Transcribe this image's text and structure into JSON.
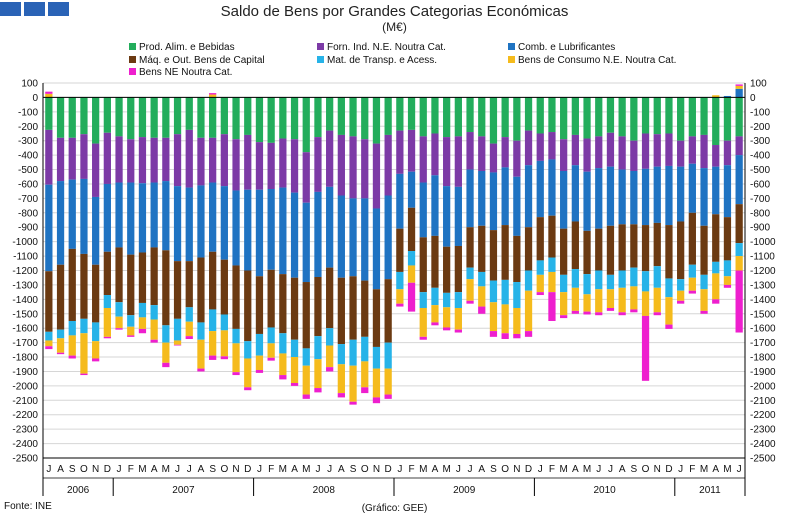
{
  "title": "Saldo de Bens por Grandes Categorias Económicas",
  "unit": "(M€)",
  "source": "Fonte: INE",
  "credit": "(Gráfico: GEE)",
  "chart_data": {
    "type": "bar",
    "stacked": true,
    "ylim": [
      -2500,
      100
    ],
    "ytick_step": 100,
    "grid": true,
    "legend_position": "top",
    "categories": [
      "J",
      "A",
      "S",
      "O",
      "N",
      "D",
      "J",
      "F",
      "M",
      "A",
      "M",
      "J",
      "J",
      "A",
      "S",
      "O",
      "N",
      "D",
      "J",
      "F",
      "M",
      "A",
      "M",
      "J",
      "J",
      "A",
      "S",
      "O",
      "N",
      "D",
      "J",
      "F",
      "M",
      "A",
      "M",
      "J",
      "J",
      "A",
      "S",
      "O",
      "N",
      "D",
      "J",
      "F",
      "M",
      "A",
      "M",
      "J",
      "J",
      "A",
      "S",
      "O",
      "N",
      "D",
      "J",
      "F",
      "M",
      "A",
      "M",
      "J"
    ],
    "years": [
      {
        "label": "2006",
        "start": 0,
        "count": 6
      },
      {
        "label": "2007",
        "start": 6,
        "count": 12
      },
      {
        "label": "2008",
        "start": 18,
        "count": 12
      },
      {
        "label": "2009",
        "start": 30,
        "count": 12
      },
      {
        "label": "2010",
        "start": 42,
        "count": 12
      },
      {
        "label": "2011",
        "start": 54,
        "count": 6
      }
    ],
    "series": [
      {
        "name": "Prod. Alim. e Bebidas",
        "color": "#23ad5c",
        "values": [
          -225,
          -280,
          -280,
          -255,
          -320,
          -245,
          -270,
          -290,
          -275,
          -280,
          -280,
          -255,
          -225,
          -280,
          -280,
          -255,
          -290,
          -260,
          -310,
          -315,
          -285,
          -290,
          -380,
          -275,
          -230,
          -260,
          -270,
          -290,
          -320,
          -260,
          -230,
          -225,
          -270,
          -250,
          -275,
          -270,
          -240,
          -270,
          -320,
          -275,
          -300,
          -230,
          -250,
          -240,
          -290,
          -260,
          -285,
          -270,
          -245,
          -270,
          -300,
          -250,
          -255,
          -250,
          -300,
          -270,
          -260,
          -330,
          -300,
          -270
        ]
      },
      {
        "name": "Forn. Ind. N.E. Noutra Cat.",
        "color": "#7c3aa6",
        "values": [
          -380,
          -300,
          -290,
          -310,
          -370,
          -355,
          -320,
          -300,
          -320,
          -310,
          -300,
          -360,
          -400,
          -330,
          -310,
          -360,
          -355,
          -380,
          -330,
          -320,
          -340,
          -370,
          -350,
          -380,
          -390,
          -420,
          -430,
          -410,
          -450,
          -420,
          -300,
          -290,
          -320,
          -290,
          -340,
          -350,
          -260,
          -240,
          -200,
          -210,
          -250,
          -240,
          -190,
          -190,
          -220,
          -210,
          -230,
          -220,
          -235,
          -230,
          -210,
          -245,
          -225,
          -225,
          -180,
          -190,
          -230,
          -150,
          -170,
          -130
        ]
      },
      {
        "name": "Comb. e Lubrificantes",
        "color": "#1f73c2",
        "values": [
          -600,
          -580,
          -480,
          -520,
          -470,
          -470,
          -450,
          -500,
          -480,
          -450,
          -480,
          -520,
          -510,
          -500,
          -480,
          -510,
          -520,
          -560,
          -600,
          -560,
          -600,
          -590,
          -550,
          -590,
          -560,
          -570,
          -540,
          -570,
          -560,
          -580,
          -380,
          -250,
          -380,
          -420,
          -420,
          -410,
          -400,
          -380,
          -400,
          -400,
          -410,
          -430,
          -390,
          -390,
          -400,
          -390,
          -410,
          -420,
          -410,
          -380,
          -370,
          -390,
          -390,
          -410,
          -380,
          -340,
          -400,
          -330,
          -360,
          -340
        ]
      },
      {
        "name": "Máq. e Out. Bens de Capital",
        "color": "#6b3a12",
        "values": [
          -420,
          -450,
          -500,
          -450,
          -400,
          -300,
          -380,
          -420,
          -350,
          -400,
          -520,
          -400,
          -320,
          -450,
          -400,
          -380,
          -440,
          -490,
          -400,
          -400,
          -410,
          -430,
          -460,
          -410,
          -420,
          -460,
          -440,
          -390,
          -400,
          -440,
          -300,
          -300,
          -380,
          -360,
          -320,
          -320,
          -280,
          -320,
          -350,
          -380,
          -320,
          -300,
          -300,
          -290,
          -320,
          -330,
          -300,
          -290,
          -340,
          -320,
          -300,
          -320,
          -300,
          -370,
          -400,
          -360,
          -340,
          -330,
          -300,
          -270
        ]
      },
      {
        "name": "Mat. de Transp. e Acess.",
        "color": "#27b3e8",
        "values": [
          -60,
          -60,
          -100,
          -100,
          -130,
          -90,
          -100,
          -80,
          -100,
          -100,
          -120,
          -150,
          -100,
          -120,
          -150,
          -110,
          -100,
          -120,
          -150,
          -110,
          -140,
          -120,
          -120,
          -160,
          -120,
          -140,
          -180,
          -170,
          -150,
          -180,
          -120,
          -100,
          -110,
          -120,
          -100,
          -110,
          -80,
          -100,
          -150,
          -170,
          -180,
          -140,
          -100,
          -100,
          -120,
          -130,
          -140,
          -130,
          -100,
          -120,
          -130,
          -140,
          -150,
          -130,
          -80,
          -90,
          -100,
          -80,
          -110,
          -90
        ]
      },
      {
        "name": "Bens de Consumo N.E. Noutra Cat.",
        "color": "#f5bb1c",
        "values": [
          -40,
          -100,
          -140,
          -280,
          -120,
          -200,
          -80,
          -60,
          -80,
          -140,
          -140,
          -30,
          -100,
          -200,
          -170,
          -180,
          -200,
          -200,
          -100,
          -100,
          -150,
          -180,
          -200,
          -200,
          -150,
          -200,
          -250,
          -180,
          -200,
          -180,
          -100,
          -120,
          -200,
          -120,
          -140,
          -150,
          -150,
          -140,
          -200,
          -200,
          -180,
          -280,
          -120,
          -140,
          -160,
          -160,
          -120,
          -160,
          -130,
          -170,
          -160,
          -170,
          -170,
          -190,
          -70,
          -90,
          -150,
          -180,
          -60,
          -100
        ]
      },
      {
        "name": "Bens NE Noutra Cat.",
        "color": "#ee1fce",
        "values": [
          -20,
          -10,
          -20,
          -10,
          -20,
          -10,
          -10,
          -10,
          -30,
          -20,
          -30,
          -5,
          -20,
          -20,
          -30,
          -20,
          -20,
          -20,
          -20,
          -20,
          -30,
          -20,
          -30,
          -30,
          -30,
          -30,
          -20,
          -40,
          -40,
          -30,
          -20,
          -200,
          -20,
          -20,
          -20,
          -20,
          -20,
          -50,
          -40,
          -40,
          -30,
          -40,
          -20,
          -200,
          -20,
          -20,
          -20,
          -20,
          -20,
          -20,
          -20,
          -450,
          -20,
          -30,
          -20,
          -20,
          -20,
          -30,
          -20,
          -430
        ]
      }
    ],
    "positive_values": {
      "comb_lubrificantes": [
        null,
        null,
        null,
        null,
        null,
        null,
        null,
        null,
        null,
        null,
        null,
        null,
        null,
        null,
        null,
        null,
        null,
        null,
        null,
        null,
        null,
        null,
        null,
        null,
        null,
        null,
        null,
        null,
        null,
        null,
        null,
        null,
        null,
        null,
        null,
        null,
        null,
        null,
        null,
        null,
        null,
        null,
        null,
        null,
        null,
        null,
        null,
        null,
        null,
        null,
        null,
        null,
        null,
        null,
        null,
        null,
        null,
        null,
        10,
        60
      ],
      "bens_consumo": [
        25,
        null,
        null,
        null,
        null,
        null,
        null,
        null,
        null,
        null,
        null,
        null,
        null,
        null,
        20,
        null,
        null,
        null,
        null,
        null,
        null,
        null,
        null,
        null,
        null,
        null,
        null,
        null,
        null,
        null,
        null,
        null,
        null,
        null,
        null,
        null,
        null,
        null,
        null,
        null,
        null,
        null,
        null,
        null,
        null,
        null,
        null,
        null,
        null,
        null,
        null,
        null,
        null,
        null,
        null,
        null,
        null,
        15,
        null,
        20
      ],
      "bens_ne": [
        15,
        null,
        null,
        null,
        null,
        null,
        null,
        null,
        null,
        null,
        null,
        null,
        null,
        null,
        10,
        null,
        null,
        null,
        null,
        null,
        null,
        null,
        null,
        null,
        null,
        null,
        null,
        null,
        null,
        null,
        null,
        null,
        null,
        null,
        null,
        null,
        null,
        null,
        null,
        null,
        null,
        null,
        null,
        null,
        null,
        null,
        null,
        null,
        null,
        null,
        null,
        null,
        null,
        null,
        null,
        null,
        null,
        null,
        null,
        10
      ]
    }
  }
}
